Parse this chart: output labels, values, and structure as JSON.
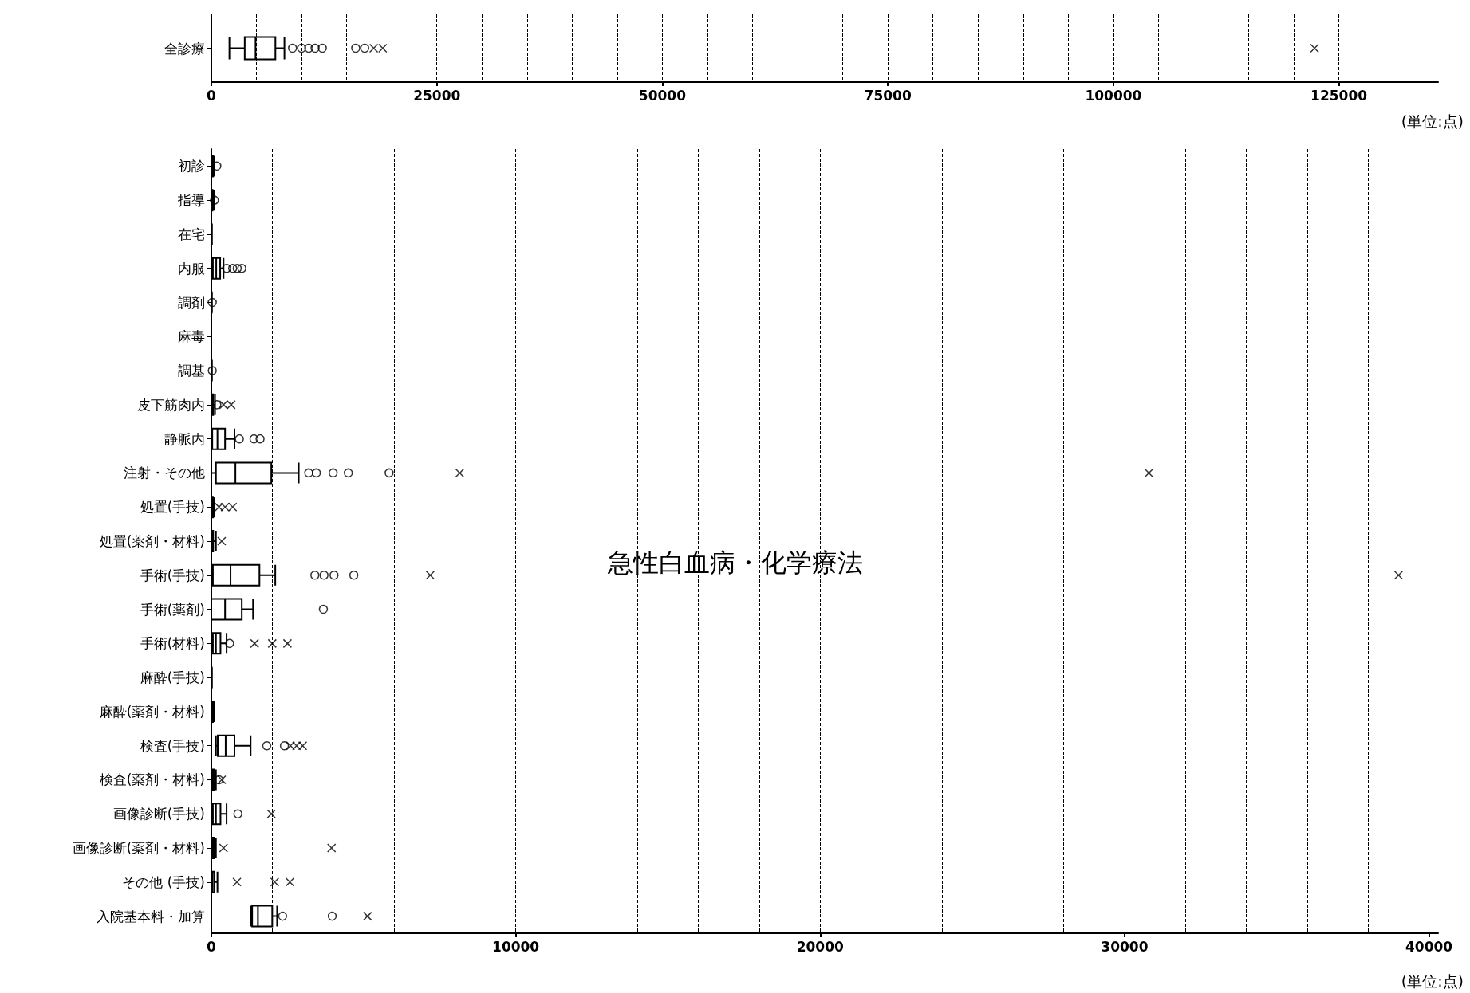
{
  "chart_data": [
    {
      "type": "box",
      "orientation": "horizontal",
      "categories": [
        "全診療"
      ],
      "boxes": [
        {
          "low": 2000,
          "q1": 3700,
          "median": 4900,
          "q3": 7100,
          "high": 8100,
          "outliers": [
            9000,
            10000,
            10800,
            11500,
            12300,
            16000,
            17000,
            18000,
            19000,
            122300
          ]
        }
      ],
      "color": "#000000",
      "xlabel": "(単位:点)",
      "xlim": [
        0,
        136000
      ],
      "xticks": [
        0,
        {
          "value": 5000,
          "label": null
        },
        {
          "value": 10000,
          "label": null
        },
        {
          "value": 15000,
          "label": null
        },
        {
          "value": 20000,
          "label": null
        },
        25000,
        {
          "value": 30000,
          "label": null
        },
        {
          "value": 35000,
          "label": null
        },
        {
          "value": 40000,
          "label": null
        },
        {
          "value": 45000,
          "label": null
        },
        50000,
        {
          "value": 55000,
          "label": null
        },
        {
          "value": 60000,
          "label": null
        },
        {
          "value": 65000,
          "label": null
        },
        {
          "value": 70000,
          "label": null
        },
        75000,
        {
          "value": 80000,
          "label": null
        },
        {
          "value": 85000,
          "label": null
        },
        {
          "value": 90000,
          "label": null
        },
        {
          "value": 95000,
          "label": null
        },
        100000,
        {
          "value": 105000,
          "label": null
        },
        {
          "value": 110000,
          "label": null
        },
        {
          "value": 115000,
          "label": null
        },
        {
          "value": 120000,
          "label": null
        },
        125000
      ],
      "grid": "x"
    },
    {
      "type": "box",
      "orientation": "horizontal",
      "categories": [
        "初診",
        "指導",
        "在宅",
        "内服",
        "調剤",
        "麻毒",
        "調基",
        "皮下筋肉内",
        "静脈内",
        "注射・その他",
        "処置(手技)",
        "処置(薬剤・材料)",
        "手術(手技)",
        "手術(薬剤)",
        "手術(材料)",
        "麻酔(手技)",
        "麻酔(薬剤・材料)",
        "検査(手技)",
        "検査(薬剤・材料)",
        "画像診断(手技)",
        "画像診断(薬剤・材料)",
        "その他 (手技)",
        "入院基本料・加算"
      ],
      "boxes": [
        {
          "low": 0,
          "q1": 0,
          "median": 20,
          "q3": 50,
          "high": 100,
          "outliers": [
            180
          ]
        },
        {
          "low": 0,
          "q1": 0,
          "median": 20,
          "q3": 40,
          "high": 80,
          "outliers": [
            100
          ]
        },
        {
          "low": 0,
          "q1": 0,
          "median": 0,
          "q3": 10,
          "high": 20
        },
        {
          "low": 0,
          "q1": 50,
          "median": 160,
          "q3": 290,
          "high": 400,
          "outliers": [
            500,
            700,
            850,
            1000
          ]
        },
        {
          "low": 0,
          "q1": 0,
          "median": 0,
          "q3": 10,
          "high": 20,
          "outliers": [
            30
          ]
        },
        {
          "low": 0,
          "q1": 0,
          "median": 0,
          "q3": 0,
          "high": 0
        },
        {
          "low": 0,
          "q1": 0,
          "median": 0,
          "q3": 10,
          "high": 20,
          "outliers": [
            30
          ]
        },
        {
          "low": 0,
          "q1": 0,
          "median": 20,
          "q3": 60,
          "high": 120,
          "outliers": [
            180,
            400,
            650
          ]
        },
        {
          "low": 0,
          "q1": 30,
          "median": 200,
          "q3": 450,
          "high": 760,
          "outliers": [
            920,
            1400,
            1600
          ]
        },
        {
          "low": 0,
          "q1": 150,
          "median": 790,
          "q3": 1970,
          "high": 2870,
          "outliers": [
            3200,
            3450,
            4000,
            4500,
            5840,
            8160,
            30800
          ]
        },
        {
          "low": 0,
          "q1": 0,
          "median": 20,
          "q3": 50,
          "high": 100,
          "outliers": [
            250,
            450,
            700
          ]
        },
        {
          "low": 0,
          "q1": 0,
          "median": 20,
          "q3": 60,
          "high": 150,
          "outliers": [
            340
          ]
        },
        {
          "low": 0,
          "q1": 50,
          "median": 630,
          "q3": 1580,
          "high": 2100,
          "outliers": [
            3400,
            3700,
            4030,
            4680,
            7190,
            39000
          ]
        },
        {
          "low": 0,
          "q1": 0,
          "median": 450,
          "q3": 1000,
          "high": 1370,
          "outliers": [
            3680
          ]
        },
        {
          "low": 0,
          "q1": 50,
          "median": 150,
          "q3": 300,
          "high": 500,
          "outliers": [
            600,
            1420,
            2000,
            2500
          ]
        },
        {
          "low": 0,
          "q1": 0,
          "median": 0,
          "q3": 10,
          "high": 20
        },
        {
          "low": 0,
          "q1": 0,
          "median": 20,
          "q3": 50,
          "high": 100
        },
        {
          "low": 150,
          "q1": 210,
          "median": 470,
          "q3": 760,
          "high": 1290,
          "outliers": [
            1820,
            2400,
            2600,
            2800,
            3000
          ]
        },
        {
          "low": 0,
          "q1": 0,
          "median": 30,
          "q3": 80,
          "high": 150,
          "outliers": [
            250,
            340
          ]
        },
        {
          "low": 0,
          "q1": 50,
          "median": 150,
          "q3": 300,
          "high": 500,
          "outliers": [
            870,
            1970
          ]
        },
        {
          "low": 0,
          "q1": 0,
          "median": 30,
          "q3": 80,
          "high": 150,
          "outliers": [
            400,
            3950
          ]
        },
        {
          "low": 0,
          "q1": 0,
          "median": 40,
          "q3": 100,
          "high": 200,
          "outliers": [
            840,
            2080,
            2580
          ]
        },
        {
          "low": 1290,
          "q1": 1340,
          "median": 1530,
          "q3": 2000,
          "high": 2160,
          "outliers": [
            2340,
            3970,
            5130
          ]
        }
      ],
      "color": "#000000",
      "xlabel": "(単位:点)",
      "annotations": [
        "急性白血病・化学療法"
      ],
      "xlim": [
        0,
        40300
      ],
      "xticks": [
        0,
        {
          "value": 2000,
          "label": null
        },
        {
          "value": 4000,
          "label": null
        },
        {
          "value": 6000,
          "label": null
        },
        {
          "value": 8000,
          "label": null
        },
        10000,
        {
          "value": 12000,
          "label": null
        },
        {
          "value": 14000,
          "label": null
        },
        {
          "value": 16000,
          "label": null
        },
        {
          "value": 18000,
          "label": null
        },
        20000,
        {
          "value": 22000,
          "label": null
        },
        {
          "value": 24000,
          "label": null
        },
        {
          "value": 26000,
          "label": null
        },
        {
          "value": 28000,
          "label": null
        },
        30000,
        {
          "value": 32000,
          "label": null
        },
        {
          "value": 34000,
          "label": null
        },
        {
          "value": 36000,
          "label": null
        },
        {
          "value": 38000,
          "label": null
        },
        40000
      ],
      "grid": "x"
    }
  ]
}
